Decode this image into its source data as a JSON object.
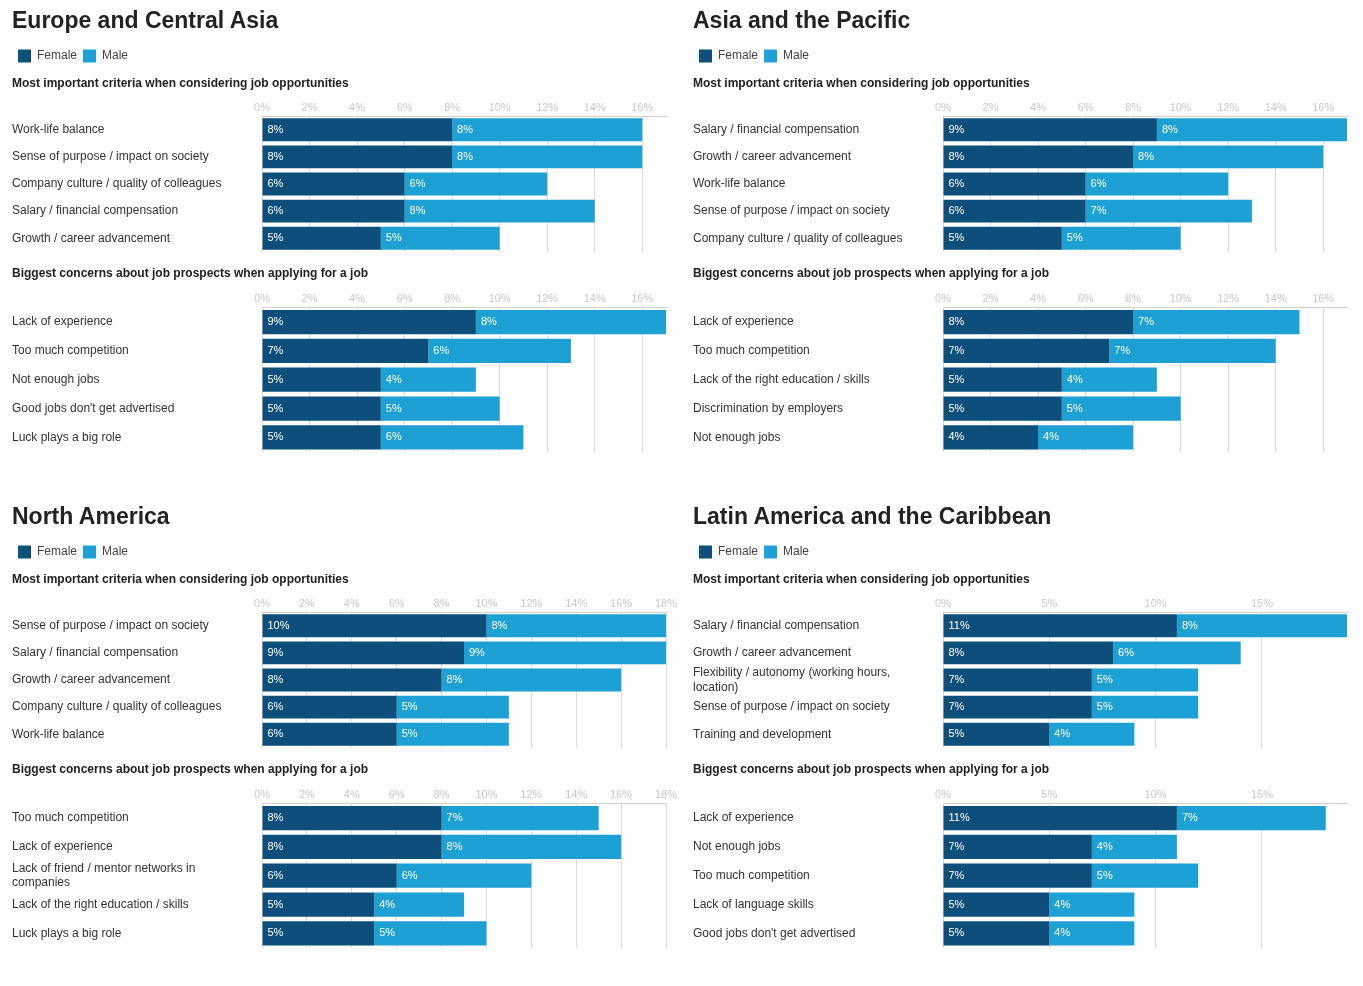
{
  "chart_data": [
    {
      "type": "bar",
      "orientation": "horizontal",
      "stacked": true,
      "title": "Europe and Central Asia",
      "subtitle": "Most important criteria when considering job opportunities",
      "legend": "top left",
      "grid": "x",
      "categories": [
        "Work-life balance",
        "Sense of purpose / impact on society",
        "Company culture / quality of colleagues",
        "Salary / financial compensation",
        "Growth / career advancement"
      ],
      "xlim": [
        0,
        17
      ],
      "xticks": [
        {
          "value": 0,
          "label": "0%"
        },
        {
          "value": 2,
          "label": "2%"
        },
        {
          "value": 4,
          "label": "4%"
        },
        {
          "value": 6,
          "label": "6%"
        },
        {
          "value": 8,
          "label": "8%"
        },
        {
          "value": 10,
          "label": "10%"
        },
        {
          "value": 12,
          "label": "12%"
        },
        {
          "value": 14,
          "label": "14%"
        },
        {
          "value": 16,
          "label": "16%"
        }
      ],
      "series": [
        {
          "name": "Female",
          "color": "#0d4f7a",
          "values": [
            8,
            8,
            6,
            6,
            5
          ],
          "value_labels": [
            "8%",
            "8%",
            "6%",
            "6%",
            "5%"
          ]
        },
        {
          "name": "Male",
          "color": "#1da0d3",
          "values": [
            8,
            8,
            6,
            8,
            5
          ],
          "value_labels": [
            "8%",
            "8%",
            "6%",
            "8%",
            "5%"
          ]
        }
      ]
    },
    {
      "type": "bar",
      "orientation": "horizontal",
      "stacked": true,
      "title": "Biggest concerns about job prospects when applying for a job",
      "grid": "x",
      "categories": [
        "Lack of experience",
        "Too much competition",
        "Not enough jobs",
        "Good jobs don't get advertised",
        "Luck plays a big role"
      ],
      "xlim": [
        0,
        17
      ],
      "xticks": [
        {
          "value": 0,
          "label": "0%"
        },
        {
          "value": 2,
          "label": "2%"
        },
        {
          "value": 4,
          "label": "4%"
        },
        {
          "value": 6,
          "label": "6%"
        },
        {
          "value": 8,
          "label": "8%"
        },
        {
          "value": 10,
          "label": "10%"
        },
        {
          "value": 12,
          "label": "12%"
        },
        {
          "value": 14,
          "label": "14%"
        },
        {
          "value": 16,
          "label": "16%"
        }
      ],
      "series": [
        {
          "color": "#0d4f7a",
          "values": [
            9,
            7,
            5,
            5,
            5
          ],
          "value_labels": [
            "9%",
            "7%",
            "5%",
            "5%",
            "5%"
          ]
        },
        {
          "color": "#1da0d3",
          "values": [
            8,
            6,
            4,
            5,
            6
          ],
          "value_labels": [
            "8%",
            "6%",
            "4%",
            "5%",
            "6%"
          ]
        }
      ]
    },
    {
      "type": "bar",
      "orientation": "horizontal",
      "stacked": true,
      "title": "Asia and the Pacific",
      "subtitle": "Most important criteria when considering job opportunities",
      "legend": "top left",
      "grid": "x",
      "categories": [
        "Salary / financial compensation",
        "Growth / career advancement",
        "Work-life balance",
        "Sense of purpose / impact on society",
        "Company culture / quality of colleagues"
      ],
      "xlim": [
        0,
        17
      ],
      "xticks": [
        {
          "value": 0,
          "label": "0%"
        },
        {
          "value": 2,
          "label": "2%"
        },
        {
          "value": 4,
          "label": "4%"
        },
        {
          "value": 6,
          "label": "6%"
        },
        {
          "value": 8,
          "label": "8%"
        },
        {
          "value": 10,
          "label": "10%"
        },
        {
          "value": 12,
          "label": "12%"
        },
        {
          "value": 14,
          "label": "14%"
        },
        {
          "value": 16,
          "label": "16%"
        }
      ],
      "series": [
        {
          "name": "Female",
          "color": "#0d4f7a",
          "values": [
            9,
            8,
            6,
            6,
            5
          ],
          "value_labels": [
            "9%",
            "8%",
            "6%",
            "6%",
            "5%"
          ]
        },
        {
          "name": "Male",
          "color": "#1da0d3",
          "values": [
            8,
            8,
            6,
            7,
            5
          ],
          "value_labels": [
            "8%",
            "8%",
            "6%",
            "7%",
            "5%"
          ]
        }
      ]
    },
    {
      "type": "bar",
      "orientation": "horizontal",
      "stacked": true,
      "title": "Biggest concerns about job prospects when applying for a job",
      "grid": "x",
      "categories": [
        "Lack of experience",
        "Too much competition",
        "Lack of the right education / skills",
        "Discrimination by employers",
        "Not enough jobs"
      ],
      "xlim": [
        0,
        17
      ],
      "xticks": [
        {
          "value": 0,
          "label": "0%"
        },
        {
          "value": 2,
          "label": "2%"
        },
        {
          "value": 4,
          "label": "4%"
        },
        {
          "value": 6,
          "label": "6%"
        },
        {
          "value": 8,
          "label": "8%"
        },
        {
          "value": 10,
          "label": "10%"
        },
        {
          "value": 12,
          "label": "12%"
        },
        {
          "value": 14,
          "label": "14%"
        },
        {
          "value": 16,
          "label": "16%"
        }
      ],
      "series": [
        {
          "color": "#0d4f7a",
          "values": [
            8,
            7,
            5,
            5,
            4
          ],
          "value_labels": [
            "8%",
            "7%",
            "5%",
            "5%",
            "4%"
          ]
        },
        {
          "color": "#1da0d3",
          "values": [
            7,
            7,
            4,
            5,
            4
          ],
          "value_labels": [
            "7%",
            "7%",
            "4%",
            "5%",
            "4%"
          ]
        }
      ]
    },
    {
      "type": "bar",
      "orientation": "horizontal",
      "stacked": true,
      "title": "North America",
      "subtitle": "Most important criteria when considering job opportunities",
      "legend": "top left",
      "grid": "x",
      "categories": [
        "Sense of purpose / impact on society",
        "Salary / financial compensation",
        "Growth / career advancement",
        "Company culture / quality of colleagues",
        "Work-life balance"
      ],
      "xlim": [
        0,
        18
      ],
      "xticks": [
        {
          "value": 0,
          "label": "0%"
        },
        {
          "value": 2,
          "label": "2%"
        },
        {
          "value": 4,
          "label": "4%"
        },
        {
          "value": 6,
          "label": "6%"
        },
        {
          "value": 8,
          "label": "8%"
        },
        {
          "value": 10,
          "label": "10%"
        },
        {
          "value": 12,
          "label": "12%"
        },
        {
          "value": 14,
          "label": "14%"
        },
        {
          "value": 16,
          "label": "16%"
        },
        {
          "value": 18,
          "label": "18%"
        }
      ],
      "series": [
        {
          "name": "Female",
          "color": "#0d4f7a",
          "values": [
            10,
            9,
            8,
            6,
            6
          ],
          "value_labels": [
            "10%",
            "9%",
            "8%",
            "6%",
            "6%"
          ]
        },
        {
          "name": "Male",
          "color": "#1da0d3",
          "values": [
            8,
            9,
            8,
            5,
            5
          ],
          "value_labels": [
            "8%",
            "9%",
            "8%",
            "5%",
            "5%"
          ]
        }
      ]
    },
    {
      "type": "bar",
      "orientation": "horizontal",
      "stacked": true,
      "title": "Biggest concerns about job prospects when applying for a job",
      "grid": "x",
      "categories": [
        "Too much competition",
        "Lack of experience",
        "Lack of friend / mentor networks in companies",
        "Lack of the right education / skills",
        "Luck plays a big role"
      ],
      "xlim": [
        0,
        18
      ],
      "xticks": [
        {
          "value": 0,
          "label": "0%"
        },
        {
          "value": 2,
          "label": "2%"
        },
        {
          "value": 4,
          "label": "4%"
        },
        {
          "value": 6,
          "label": "6%"
        },
        {
          "value": 8,
          "label": "8%"
        },
        {
          "value": 10,
          "label": "10%"
        },
        {
          "value": 12,
          "label": "12%"
        },
        {
          "value": 14,
          "label": "14%"
        },
        {
          "value": 16,
          "label": "16%"
        },
        {
          "value": 18,
          "label": "18%"
        }
      ],
      "series": [
        {
          "color": "#0d4f7a",
          "values": [
            8,
            8,
            6,
            5,
            5
          ],
          "value_labels": [
            "8%",
            "8%",
            "6%",
            "5%",
            "5%"
          ]
        },
        {
          "color": "#1da0d3",
          "values": [
            7,
            8,
            6,
            4,
            5
          ],
          "value_labels": [
            "7%",
            "8%",
            "6%",
            "4%",
            "5%"
          ]
        }
      ]
    },
    {
      "type": "bar",
      "orientation": "horizontal",
      "stacked": true,
      "title": "Latin America and the Caribbean",
      "subtitle": "Most important criteria when considering job opportunities",
      "legend": "top left",
      "grid": "x",
      "categories": [
        "Salary / financial compensation",
        "Growth / career advancement",
        "Flexibility / autonomy (working hours, location)",
        "Sense of purpose / impact on society",
        "Training and development"
      ],
      "xlim": [
        0,
        19
      ],
      "xticks": [
        {
          "value": 0,
          "label": "0%"
        },
        {
          "value": 5,
          "label": "5%"
        },
        {
          "value": 10,
          "label": "10%"
        },
        {
          "value": 15,
          "label": "15%"
        }
      ],
      "series": [
        {
          "name": "Female",
          "color": "#0d4f7a",
          "values": [
            11,
            8,
            7,
            7,
            5
          ],
          "value_labels": [
            "11%",
            "8%",
            "7%",
            "7%",
            "5%"
          ]
        },
        {
          "name": "Male",
          "color": "#1da0d3",
          "values": [
            8,
            6,
            5,
            5,
            4
          ],
          "value_labels": [
            "8%",
            "6%",
            "5%",
            "5%",
            "4%"
          ]
        }
      ]
    },
    {
      "type": "bar",
      "orientation": "horizontal",
      "stacked": true,
      "title": "Biggest concerns about job prospects when applying for a job",
      "grid": "x",
      "categories": [
        "Lack of experience",
        "Not enough jobs",
        "Too much competition",
        "Lack of language skills",
        "Good jobs don't get advertised"
      ],
      "xlim": [
        0,
        19
      ],
      "xticks": [
        {
          "value": 0,
          "label": "0%"
        },
        {
          "value": 5,
          "label": "5%"
        },
        {
          "value": 10,
          "label": "10%"
        },
        {
          "value": 15,
          "label": "15%"
        }
      ],
      "series": [
        {
          "color": "#0d4f7a",
          "values": [
            11,
            7,
            7,
            5,
            5
          ],
          "value_labels": [
            "11%",
            "7%",
            "7%",
            "5%",
            "5%"
          ]
        },
        {
          "color": "#1da0d3",
          "values": [
            7,
            4,
            5,
            4,
            4
          ],
          "value_labels": [
            "7%",
            "4%",
            "5%",
            "4%",
            "4%"
          ]
        }
      ]
    }
  ]
}
